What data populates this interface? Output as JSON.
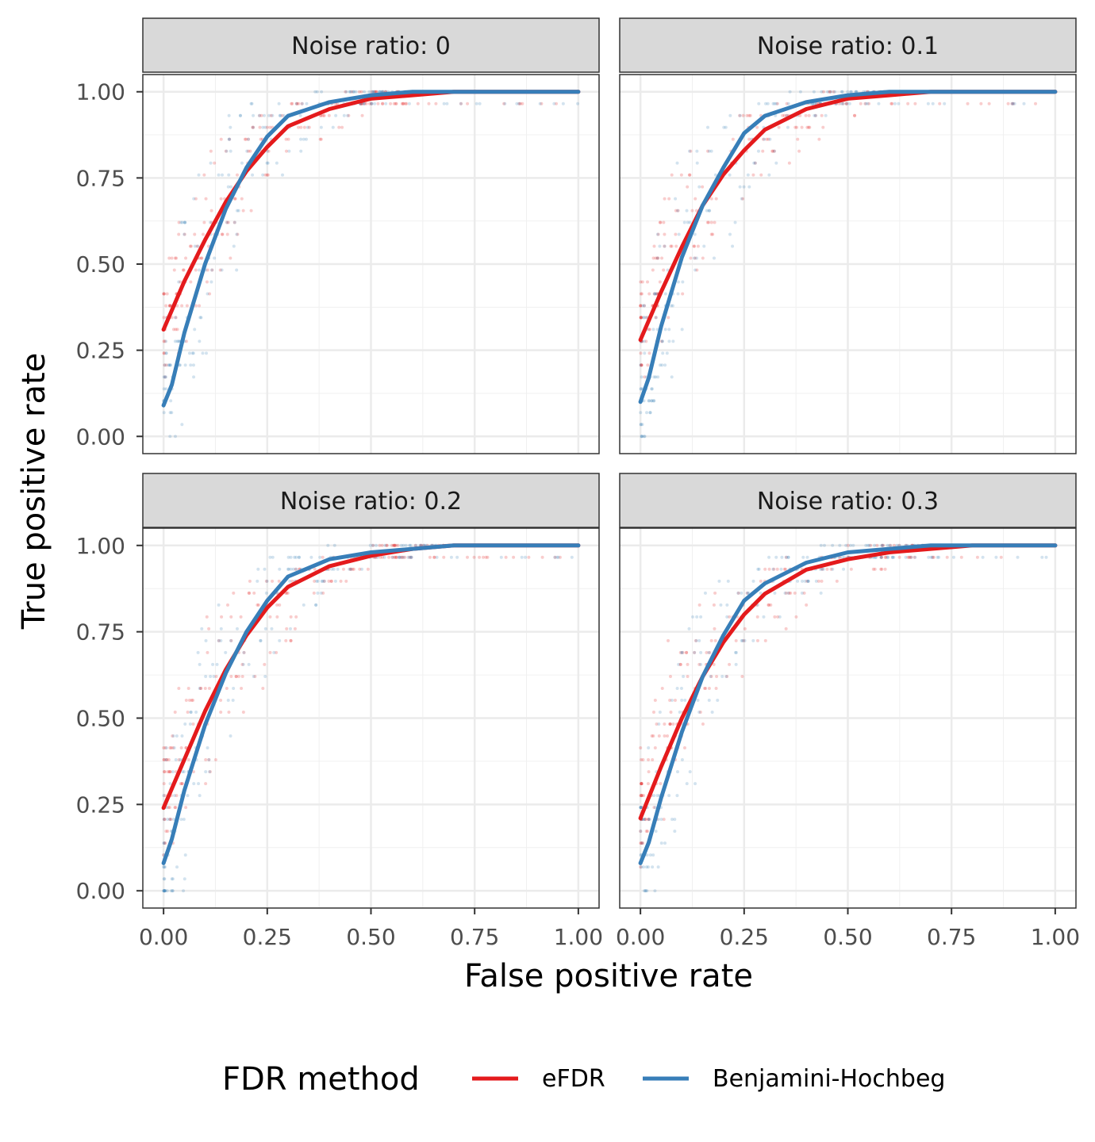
{
  "chart_data": {
    "type": "line",
    "xlabel": "False positive rate",
    "ylabel": "True positive rate",
    "xlim": [
      -0.05,
      1.05
    ],
    "ylim": [
      -0.05,
      1.05
    ],
    "x_ticks": [
      "0.00",
      "0.25",
      "0.50",
      "0.75",
      "1.00"
    ],
    "y_ticks": [
      "0.00",
      "0.25",
      "0.50",
      "0.75",
      "1.00"
    ],
    "grid": true,
    "legend": {
      "title": "FDR method",
      "position": "bottom",
      "entries": [
        {
          "label": "eFDR",
          "color": "#e41a1c"
        },
        {
          "label": "Benjamini-Hochbeg",
          "color": "#377eb8"
        }
      ]
    },
    "facets": [
      {
        "strip": "Noise ratio: 0",
        "series": [
          {
            "name": "eFDR",
            "color": "#e41a1c",
            "x": [
              0,
              0.05,
              0.1,
              0.15,
              0.2,
              0.25,
              0.3,
              0.4,
              0.5,
              0.6,
              0.7,
              0.8,
              0.9,
              1.0
            ],
            "y": [
              0.31,
              0.45,
              0.57,
              0.68,
              0.77,
              0.84,
              0.9,
              0.95,
              0.98,
              0.99,
              1.0,
              1.0,
              1.0,
              1.0
            ]
          },
          {
            "name": "Benjamini-Hochbeg",
            "color": "#377eb8",
            "x": [
              0,
              0.02,
              0.05,
              0.1,
              0.15,
              0.2,
              0.25,
              0.3,
              0.4,
              0.5,
              0.6,
              0.7,
              0.8,
              0.9,
              1.0
            ],
            "y": [
              0.09,
              0.15,
              0.3,
              0.5,
              0.66,
              0.78,
              0.87,
              0.93,
              0.97,
              0.99,
              1.0,
              1.0,
              1.0,
              1.0,
              1.0
            ]
          }
        ]
      },
      {
        "strip": "Noise ratio: 0.1",
        "series": [
          {
            "name": "eFDR",
            "color": "#e41a1c",
            "x": [
              0,
              0.05,
              0.1,
              0.15,
              0.2,
              0.25,
              0.3,
              0.4,
              0.5,
              0.6,
              0.7,
              0.8,
              0.9,
              1.0
            ],
            "y": [
              0.28,
              0.42,
              0.55,
              0.67,
              0.76,
              0.83,
              0.89,
              0.95,
              0.98,
              0.99,
              1.0,
              1.0,
              1.0,
              1.0
            ]
          },
          {
            "name": "Benjamini-Hochbeg",
            "color": "#377eb8",
            "x": [
              0,
              0.02,
              0.05,
              0.1,
              0.15,
              0.2,
              0.25,
              0.3,
              0.4,
              0.5,
              0.6,
              0.7,
              0.8,
              0.9,
              1.0
            ],
            "y": [
              0.1,
              0.17,
              0.32,
              0.52,
              0.67,
              0.78,
              0.88,
              0.93,
              0.97,
              0.99,
              1.0,
              1.0,
              1.0,
              1.0,
              1.0
            ]
          }
        ]
      },
      {
        "strip": "Noise ratio: 0.2",
        "series": [
          {
            "name": "eFDR",
            "color": "#e41a1c",
            "x": [
              0,
              0.05,
              0.1,
              0.15,
              0.2,
              0.25,
              0.3,
              0.4,
              0.5,
              0.6,
              0.7,
              0.8,
              0.9,
              1.0
            ],
            "y": [
              0.24,
              0.38,
              0.52,
              0.64,
              0.74,
              0.82,
              0.88,
              0.94,
              0.97,
              0.99,
              1.0,
              1.0,
              1.0,
              1.0
            ]
          },
          {
            "name": "Benjamini-Hochbeg",
            "color": "#377eb8",
            "x": [
              0,
              0.02,
              0.05,
              0.1,
              0.15,
              0.2,
              0.25,
              0.3,
              0.4,
              0.5,
              0.6,
              0.7,
              0.8,
              0.9,
              1.0
            ],
            "y": [
              0.08,
              0.15,
              0.29,
              0.48,
              0.63,
              0.75,
              0.84,
              0.91,
              0.96,
              0.98,
              0.99,
              1.0,
              1.0,
              1.0,
              1.0
            ]
          }
        ]
      },
      {
        "strip": "Noise ratio: 0.3",
        "series": [
          {
            "name": "eFDR",
            "color": "#e41a1c",
            "x": [
              0,
              0.05,
              0.1,
              0.15,
              0.2,
              0.25,
              0.3,
              0.4,
              0.5,
              0.6,
              0.7,
              0.8,
              0.9,
              1.0
            ],
            "y": [
              0.21,
              0.36,
              0.5,
              0.62,
              0.72,
              0.8,
              0.86,
              0.93,
              0.96,
              0.98,
              0.99,
              1.0,
              1.0,
              1.0
            ]
          },
          {
            "name": "Benjamini-Hochbeg",
            "color": "#377eb8",
            "x": [
              0,
              0.02,
              0.05,
              0.1,
              0.15,
              0.2,
              0.25,
              0.3,
              0.4,
              0.5,
              0.6,
              0.7,
              0.8,
              0.9,
              1.0
            ],
            "y": [
              0.08,
              0.14,
              0.27,
              0.46,
              0.62,
              0.74,
              0.84,
              0.89,
              0.95,
              0.98,
              0.99,
              1.0,
              1.0,
              1.0,
              1.0
            ]
          }
        ]
      }
    ]
  }
}
